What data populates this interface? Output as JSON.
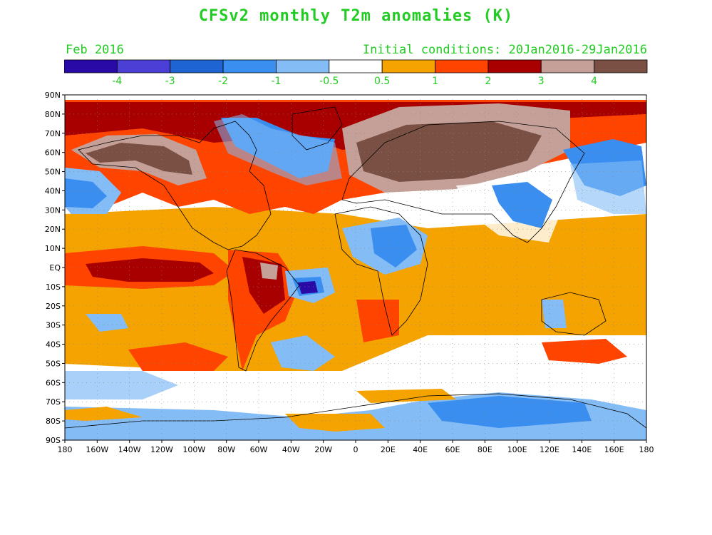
{
  "title": "CFSv2 monthly T2m anomalies (K)",
  "month_label": "Feb 2016",
  "init_label": "Initial conditions: 20Jan2016-29Jan2016",
  "text_color": "#22cc22",
  "legend": {
    "colors": [
      "#2a0aa6",
      "#4c3fd6",
      "#1e64d2",
      "#3a8ef0",
      "#84bcf6",
      "#ffffff",
      "#f5a300",
      "#ff4400",
      "#a80000",
      "#c4a098",
      "#7a5044"
    ],
    "tick_labels": [
      "-4",
      "-3",
      "-2",
      "-1",
      "-0.5",
      "0.5",
      "1",
      "2",
      "3",
      "4"
    ]
  },
  "axes": {
    "lat_labels": [
      "90N",
      "80N",
      "70N",
      "60N",
      "50N",
      "40N",
      "30N",
      "20N",
      "10N",
      "EQ",
      "10S",
      "20S",
      "30S",
      "40S",
      "50S",
      "60S",
      "70S",
      "80S",
      "90S"
    ],
    "lon_labels": [
      "180",
      "160W",
      "140W",
      "120W",
      "100W",
      "80W",
      "60W",
      "40W",
      "20W",
      "0",
      "20E",
      "40E",
      "60E",
      "80E",
      "100E",
      "120E",
      "140E",
      "160E",
      "180"
    ]
  }
}
